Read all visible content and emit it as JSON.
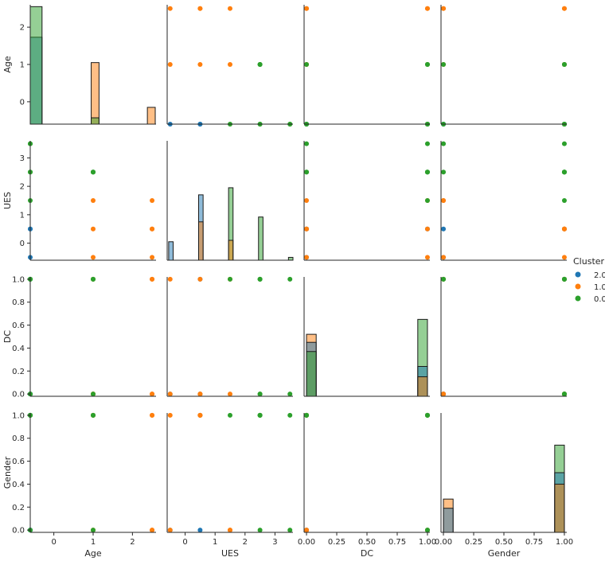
{
  "chart_data": {
    "type": "scatter",
    "layout": "pairplot",
    "variables": [
      "Age",
      "UES",
      "DC",
      "Gender"
    ],
    "axis_ranges": {
      "Age": [
        -0.6,
        2.6
      ],
      "UES": [
        -0.6,
        3.6
      ],
      "DC": [
        -0.02,
        1.02
      ],
      "Gender": [
        -0.02,
        1.02
      ]
    },
    "ticks": {
      "Age": [
        0,
        1,
        2
      ],
      "UES": [
        0,
        1,
        2,
        3
      ],
      "DC": [
        0.0,
        0.2,
        0.4,
        0.6,
        0.8,
        1.0
      ],
      "Gender": [
        0.0,
        0.2,
        0.4,
        0.6,
        0.8,
        1.0
      ]
    },
    "x_ticks_bottom": {
      "DC": [
        "0.00",
        "0.25",
        "0.50",
        "0.75",
        "1.00"
      ],
      "Gender": [
        "0.00",
        "0.25",
        "0.50",
        "0.75",
        "1.00"
      ]
    },
    "legend": {
      "title": "Cluster",
      "placement": "right",
      "entries": [
        {
          "label": "2.0",
          "color": "#1f77b4"
        },
        {
          "label": "1.0",
          "color": "#ff7f0e"
        },
        {
          "label": "0.0",
          "color": "#2ca02c"
        }
      ]
    },
    "series": [
      {
        "name": "2.0",
        "color": "#1f77b4",
        "points": [
          {
            "Age": -0.6,
            "UES": -0.5,
            "DC": 0,
            "Gender": 0
          },
          {
            "Age": -0.6,
            "UES": 0.5,
            "DC": 0,
            "Gender": 0
          },
          {
            "Age": -0.6,
            "UES": 0.5,
            "DC": 1,
            "Gender": 1
          }
        ]
      },
      {
        "name": "1.0",
        "color": "#ff7f0e",
        "points": [
          {
            "Age": 2.5,
            "UES": -0.5,
            "DC": 0,
            "Gender": 0
          },
          {
            "Age": 2.5,
            "UES": 0.5,
            "DC": 0,
            "Gender": 1
          },
          {
            "Age": 2.5,
            "UES": 1.5,
            "DC": 1,
            "Gender": 0
          },
          {
            "Age": 1.0,
            "UES": -0.5,
            "DC": 1,
            "Gender": 1
          },
          {
            "Age": 1.0,
            "UES": 0.5,
            "DC": 0,
            "Gender": 1
          },
          {
            "Age": 1.0,
            "UES": 1.5,
            "DC": 0,
            "Gender": 0
          },
          {
            "Age": 2.5,
            "UES": 0.5,
            "DC": 1,
            "Gender": 1
          }
        ]
      },
      {
        "name": "0.0",
        "color": "#2ca02c",
        "points": [
          {
            "Age": -0.6,
            "UES": 1.5,
            "DC": 1,
            "Gender": 1
          },
          {
            "Age": -0.6,
            "UES": 2.5,
            "DC": 0,
            "Gender": 1
          },
          {
            "Age": -0.6,
            "UES": 3.5,
            "DC": 1,
            "Gender": 0
          },
          {
            "Age": 1.0,
            "UES": 2.5,
            "DC": 1,
            "Gender": 0
          },
          {
            "Age": -0.6,
            "UES": 2.5,
            "DC": 1,
            "Gender": 1
          },
          {
            "Age": 1.0,
            "UES": 2.5,
            "DC": 0,
            "Gender": 1
          },
          {
            "Age": -0.6,
            "UES": 3.5,
            "DC": 0,
            "Gender": 1
          },
          {
            "Age": 1.0,
            "UES": 2.5,
            "DC": 1,
            "Gender": 1
          }
        ]
      }
    ],
    "diagonal_histograms": {
      "Age": {
        "ylim": [
          -0.6,
          2.6
        ],
        "bars": [
          {
            "x0": -0.6,
            "x1": -0.3,
            "series": "2.0",
            "top": 1.73
          },
          {
            "x0": -0.6,
            "x1": -0.3,
            "series": "0.0",
            "top": 2.55
          },
          {
            "x0": 0.95,
            "x1": 1.15,
            "series": "1.0",
            "top": 1.05
          },
          {
            "x0": 0.95,
            "x1": 1.15,
            "series": "0.0",
            "top": -0.43
          },
          {
            "x0": 2.38,
            "x1": 2.58,
            "series": "1.0",
            "top": -0.15
          }
        ]
      },
      "UES": {
        "ylim": [
          -0.6,
          3.6
        ],
        "bars": [
          {
            "x0": -0.55,
            "x1": -0.4,
            "series": "2.0",
            "top": 0.05
          },
          {
            "x0": 0.45,
            "x1": 0.6,
            "series": "2.0",
            "top": 1.7
          },
          {
            "x0": 0.45,
            "x1": 0.6,
            "series": "1.0",
            "top": 0.75
          },
          {
            "x0": 1.45,
            "x1": 1.6,
            "series": "0.0",
            "top": 1.95
          },
          {
            "x0": 1.45,
            "x1": 1.6,
            "series": "1.0",
            "top": 0.1
          },
          {
            "x0": 2.45,
            "x1": 2.6,
            "series": "0.0",
            "top": 0.92
          },
          {
            "x0": 3.45,
            "x1": 3.6,
            "series": "0.0",
            "top": -0.5
          }
        ]
      },
      "DC": {
        "ylim": [
          -0.02,
          1.02
        ],
        "bars": [
          {
            "x0": 0.0,
            "x1": 0.08,
            "series": "1.0",
            "top": 0.52
          },
          {
            "x0": 0.0,
            "x1": 0.08,
            "series": "2.0",
            "top": 0.45
          },
          {
            "x0": 0.0,
            "x1": 0.08,
            "series": "0.0",
            "top": 0.37
          },
          {
            "x0": 0.92,
            "x1": 1.0,
            "series": "0.0",
            "top": 0.65
          },
          {
            "x0": 0.92,
            "x1": 1.0,
            "series": "2.0",
            "top": 0.24
          },
          {
            "x0": 0.92,
            "x1": 1.0,
            "series": "1.0",
            "top": 0.15
          }
        ]
      },
      "Gender": {
        "ylim": [
          -0.02,
          1.02
        ],
        "bars": [
          {
            "x0": 0.0,
            "x1": 0.08,
            "series": "1.0",
            "top": 0.27
          },
          {
            "x0": 0.0,
            "x1": 0.08,
            "series": "2.0",
            "top": 0.19
          },
          {
            "x0": 0.92,
            "x1": 1.0,
            "series": "0.0",
            "top": 0.74
          },
          {
            "x0": 0.92,
            "x1": 1.0,
            "series": "2.0",
            "top": 0.5
          },
          {
            "x0": 0.92,
            "x1": 1.0,
            "series": "1.0",
            "top": 0.4
          }
        ]
      }
    }
  }
}
